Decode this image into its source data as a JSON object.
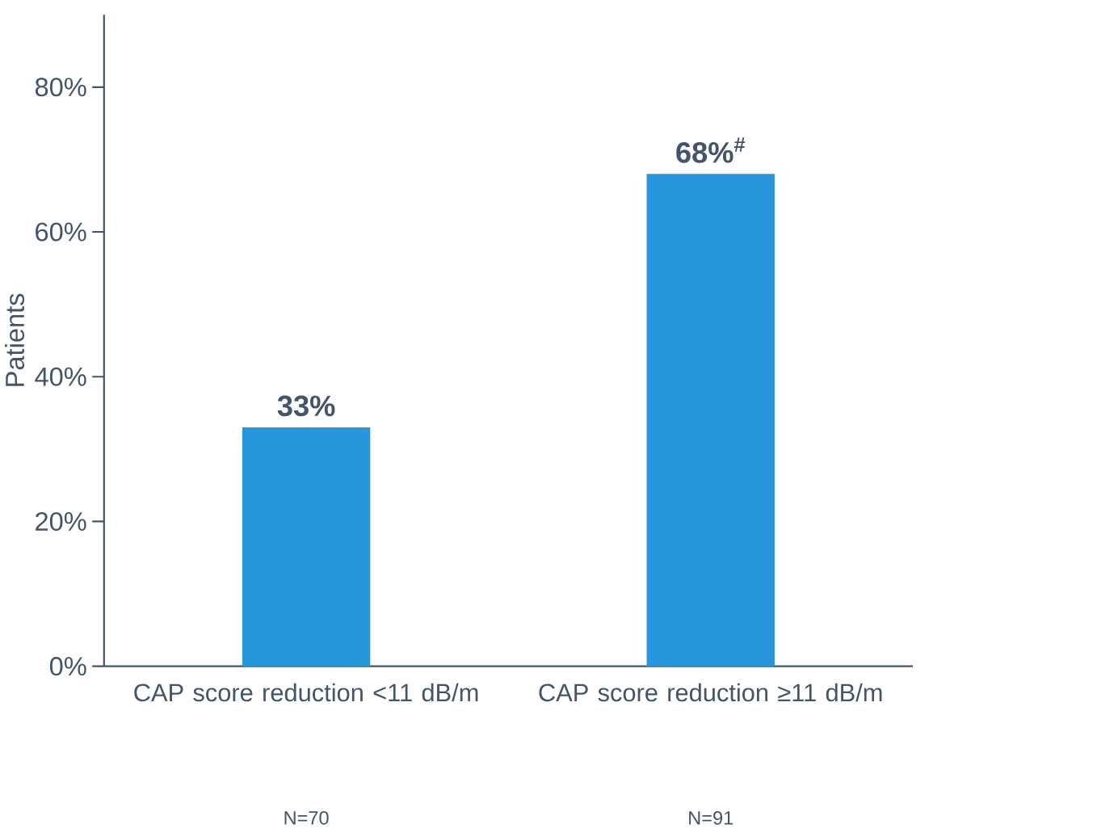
{
  "chart_data": {
    "type": "bar",
    "ylabel": "Patients",
    "categories": [
      "CAP score reduction <11 dB/m",
      "CAP score reduction ≥11 dB/m"
    ],
    "values": [
      33,
      68
    ],
    "value_labels": [
      "33%",
      "68%$^{#}$"
    ],
    "color": "#2896dc",
    "annotations": [
      "N=70",
      "N=91"
    ],
    "ylim": [
      0,
      90
    ],
    "yticks": [
      {
        "value": 0,
        "label": "0%"
      },
      {
        "value": 20,
        "label": "20%"
      },
      {
        "value": 40,
        "label": "40%"
      },
      {
        "value": 60,
        "label": "60%"
      },
      {
        "value": 80,
        "label": "80%"
      }
    ]
  }
}
